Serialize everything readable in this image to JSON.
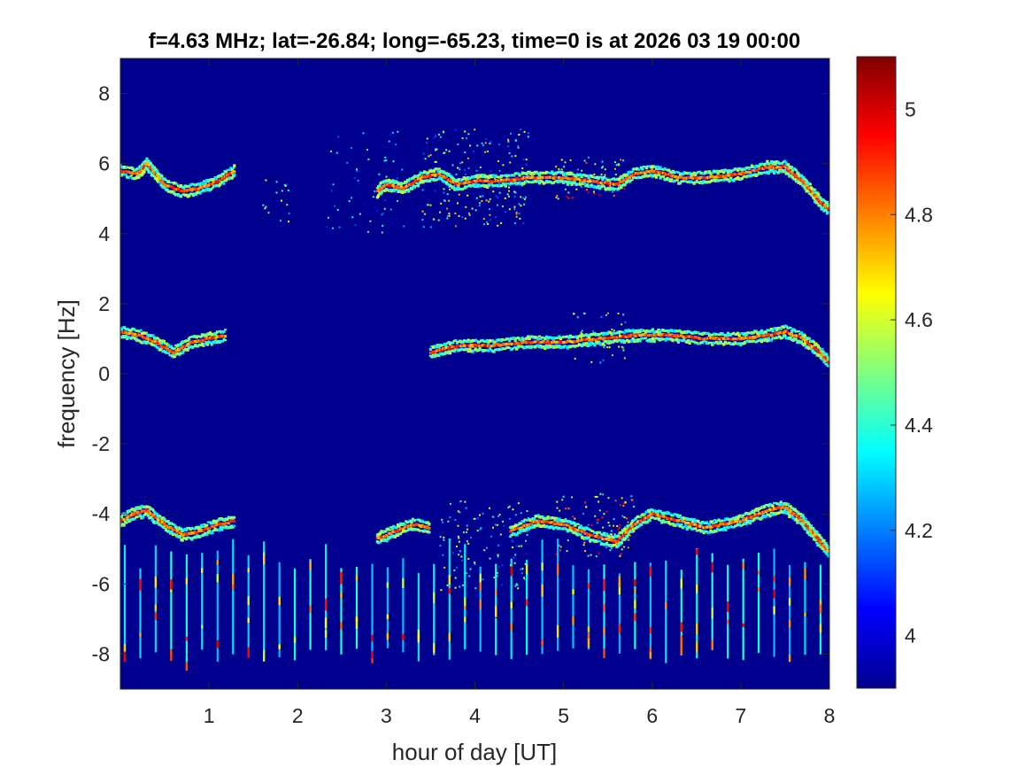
{
  "chart_data": {
    "type": "heatmap",
    "title": "f=4.63 MHz;  lat=-26.84; long=-65.23, time=0 is at 2026 03 19 00:00",
    "xlabel": "hour of day [UT]",
    "ylabel": "frequency [Hz]",
    "xlim": [
      0,
      8
    ],
    "ylim": [
      -9,
      9
    ],
    "xticks": [
      1,
      2,
      3,
      4,
      5,
      6,
      7,
      8
    ],
    "xtick_labels": [
      "1",
      "2",
      "3",
      "4",
      "5",
      "6",
      "7",
      "8"
    ],
    "yticks": [
      -8,
      -6,
      -4,
      -2,
      0,
      2,
      4,
      6,
      8
    ],
    "ytick_labels": [
      "-8",
      "-6",
      "-4",
      "-2",
      "0",
      "2",
      "4",
      "6",
      "8"
    ],
    "colorbar": {
      "colormap": "jet",
      "clim": [
        3.9,
        5.1
      ],
      "ticks": [
        4,
        4.2,
        4.4,
        4.6,
        4.8,
        5
      ],
      "tick_labels": [
        "4",
        "4.2",
        "4.4",
        "4.6",
        "4.8",
        "5"
      ]
    },
    "background_value": 3.95,
    "traces": [
      {
        "points": [
          [
            0.0,
            5.8
          ],
          [
            0.2,
            5.7
          ],
          [
            0.3,
            6.0
          ],
          [
            0.5,
            5.4
          ],
          [
            0.7,
            5.2
          ],
          [
            0.9,
            5.3
          ],
          [
            1.1,
            5.5
          ],
          [
            1.3,
            5.8
          ]
        ],
        "value": 4.95
      },
      {
        "points": [
          [
            2.9,
            5.2
          ],
          [
            3.0,
            5.4
          ],
          [
            3.2,
            5.3
          ],
          [
            3.4,
            5.6
          ],
          [
            3.6,
            5.7
          ],
          [
            3.8,
            5.4
          ],
          [
            4.0,
            5.5
          ],
          [
            4.3,
            5.5
          ],
          [
            4.6,
            5.6
          ],
          [
            5.0,
            5.6
          ],
          [
            5.3,
            5.5
          ],
          [
            5.6,
            5.4
          ],
          [
            5.8,
            5.7
          ],
          [
            6.0,
            5.8
          ],
          [
            6.3,
            5.6
          ],
          [
            6.6,
            5.6
          ],
          [
            7.0,
            5.7
          ],
          [
            7.3,
            5.9
          ],
          [
            7.5,
            5.9
          ],
          [
            7.7,
            5.5
          ],
          [
            7.9,
            4.9
          ],
          [
            8.0,
            4.7
          ]
        ],
        "value": 4.95
      },
      {
        "points": [
          [
            0.0,
            1.2
          ],
          [
            0.2,
            1.1
          ],
          [
            0.4,
            0.9
          ],
          [
            0.6,
            0.6
          ],
          [
            0.8,
            0.9
          ],
          [
            1.0,
            1.0
          ],
          [
            1.2,
            1.1
          ]
        ],
        "value": 4.95
      },
      {
        "points": [
          [
            3.5,
            0.6
          ],
          [
            3.8,
            0.8
          ],
          [
            4.2,
            0.8
          ],
          [
            4.6,
            0.9
          ],
          [
            5.0,
            0.9
          ],
          [
            5.4,
            1.0
          ],
          [
            5.8,
            1.1
          ],
          [
            6.2,
            1.1
          ],
          [
            6.6,
            1.0
          ],
          [
            7.0,
            1.0
          ],
          [
            7.3,
            1.1
          ],
          [
            7.5,
            1.2
          ],
          [
            7.7,
            1.0
          ],
          [
            7.9,
            0.6
          ],
          [
            8.0,
            0.3
          ]
        ],
        "value": 4.95
      },
      {
        "points": [
          [
            0.0,
            -4.2
          ],
          [
            0.15,
            -4.0
          ],
          [
            0.3,
            -3.9
          ],
          [
            0.5,
            -4.3
          ],
          [
            0.7,
            -4.6
          ],
          [
            0.9,
            -4.5
          ],
          [
            1.1,
            -4.3
          ],
          [
            1.3,
            -4.2
          ]
        ],
        "value": 4.95
      },
      {
        "points": [
          [
            2.9,
            -4.7
          ],
          [
            3.1,
            -4.5
          ],
          [
            3.3,
            -4.3
          ],
          [
            3.5,
            -4.4
          ]
        ],
        "value": 4.95
      },
      {
        "points": [
          [
            4.4,
            -4.5
          ],
          [
            4.7,
            -4.2
          ],
          [
            5.0,
            -4.3
          ],
          [
            5.3,
            -4.6
          ],
          [
            5.6,
            -4.8
          ],
          [
            5.8,
            -4.3
          ],
          [
            6.0,
            -4.0
          ],
          [
            6.3,
            -4.2
          ],
          [
            6.6,
            -4.4
          ],
          [
            7.0,
            -4.2
          ],
          [
            7.3,
            -3.9
          ],
          [
            7.5,
            -3.8
          ],
          [
            7.7,
            -4.2
          ],
          [
            7.9,
            -4.8
          ],
          [
            8.0,
            -5.1
          ]
        ],
        "value": 4.95
      }
    ],
    "scatter_regions": [
      {
        "x": [
          3.4,
          4.6
        ],
        "y": [
          4.2,
          7.0
        ],
        "density": 0.6,
        "value_range": [
          4.1,
          4.8
        ]
      },
      {
        "x": [
          4.9,
          5.7
        ],
        "y": [
          5.0,
          6.2
        ],
        "density": 0.7,
        "value_range": [
          4.2,
          5.0
        ]
      },
      {
        "x": [
          5.1,
          5.7
        ],
        "y": [
          0.3,
          1.8
        ],
        "density": 0.5,
        "value_range": [
          4.2,
          4.8
        ]
      },
      {
        "x": [
          4.9,
          5.8
        ],
        "y": [
          -5.2,
          -3.4
        ],
        "density": 0.7,
        "value_range": [
          4.2,
          5.0
        ]
      },
      {
        "x": [
          3.6,
          4.6
        ],
        "y": [
          -6.2,
          -3.6
        ],
        "density": 0.5,
        "value_range": [
          4.1,
          4.7
        ]
      },
      {
        "x": [
          1.6,
          1.9
        ],
        "y": [
          4.2,
          5.6
        ],
        "density": 0.4,
        "value_range": [
          4.1,
          4.7
        ]
      },
      {
        "x": [
          2.3,
          3.2
        ],
        "y": [
          4.0,
          7.0
        ],
        "density": 0.25,
        "value_range": [
          4.0,
          4.5
        ]
      }
    ],
    "vertical_streaks": {
      "x_start": 0.05,
      "x_end": 7.9,
      "count": 46,
      "y_range": [
        -8.3,
        -4.7
      ],
      "value_range": [
        4.1,
        5.0
      ]
    }
  }
}
